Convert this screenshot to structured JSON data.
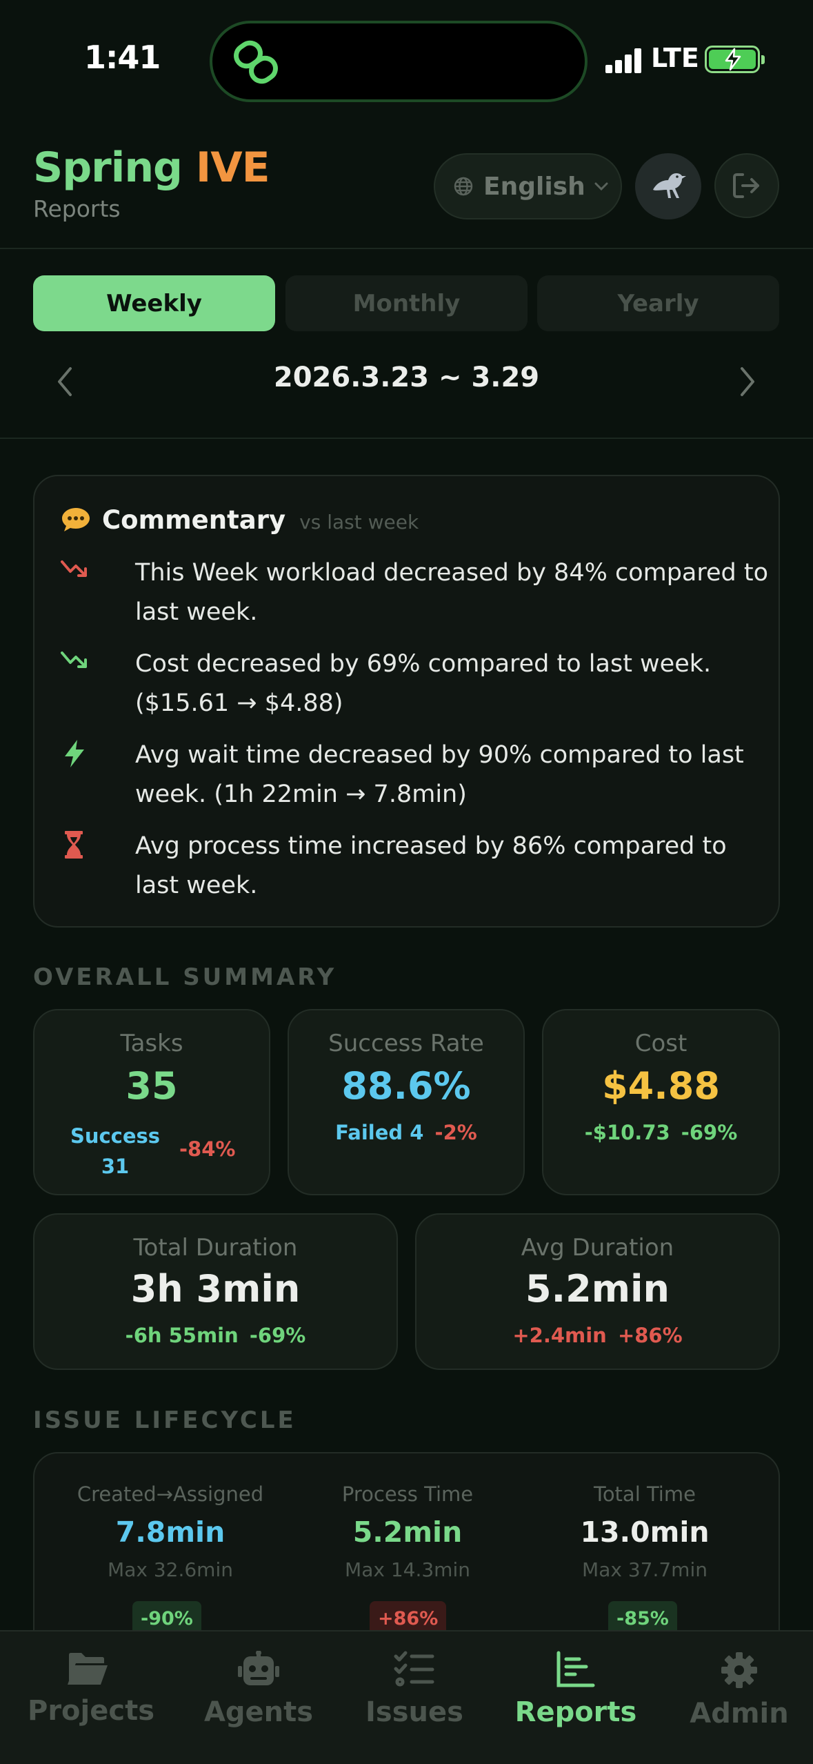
{
  "status_bar": {
    "time": "1:41",
    "network": "LTE",
    "signal_icon": "signal-bars-icon",
    "battery_icon": "battery-charging-icon"
  },
  "header": {
    "brand_primary": "Spring",
    "brand_secondary": "IVE",
    "subtitle": "Reports",
    "language": "English",
    "colors": {
      "brand_green": "#7ad98a",
      "brand_orange": "#f29540"
    }
  },
  "tabs": [
    {
      "label": "Weekly",
      "active": true
    },
    {
      "label": "Monthly",
      "active": false
    },
    {
      "label": "Yearly",
      "active": false
    }
  ],
  "date_range": "2026.3.23 ~ 3.29",
  "commentary": {
    "title": "Commentary",
    "subtitle": "vs last week",
    "items": [
      {
        "icon": "trend-down-red-icon",
        "text": "This Week workload decreased by 84% compared to last week."
      },
      {
        "icon": "trend-down-green-icon",
        "text": "Cost decreased by 69% compared to last week. ($15.61 → $4.88)"
      },
      {
        "icon": "lightning-icon",
        "text": "Avg wait time decreased by 90% compared to last week. (1h 22min → 7.8min)"
      },
      {
        "icon": "hourglass-icon",
        "text": "Avg process time increased by 86% compared to last week."
      }
    ]
  },
  "overall_summary": {
    "title": "OVERALL SUMMARY",
    "tasks": {
      "label": "Tasks",
      "value": "35",
      "success_label": "Success",
      "success_value": "31",
      "change": "-84%"
    },
    "success_rate": {
      "label": "Success Rate",
      "value": "88.6%",
      "failed": "Failed 4",
      "change": "-2%"
    },
    "cost": {
      "label": "Cost",
      "value": "$4.88",
      "delta": "-$10.73",
      "change": "-69%"
    },
    "total_duration": {
      "label": "Total Duration",
      "value": "3h 3min",
      "delta": "-6h 55min",
      "change": "-69%"
    },
    "avg_duration": {
      "label": "Avg Duration",
      "value": "5.2min",
      "delta": "+2.4min",
      "change": "+86%"
    }
  },
  "issue_lifecycle": {
    "title": "ISSUE LIFECYCLE",
    "columns": [
      {
        "label": "Created→Assigned",
        "value": "7.8min",
        "max": "Max 32.6min",
        "change": "-90%"
      },
      {
        "label": "Process Time",
        "value": "5.2min",
        "max": "Max 14.3min",
        "change": "+86%"
      },
      {
        "label": "Total Time",
        "value": "13.0min",
        "max": "Max 37.7min",
        "change": "-85%"
      }
    ]
  },
  "bottom_nav": [
    {
      "label": "Projects",
      "icon": "folder-icon",
      "active": false
    },
    {
      "label": "Agents",
      "icon": "robot-icon",
      "active": false
    },
    {
      "label": "Issues",
      "icon": "checklist-icon",
      "active": false
    },
    {
      "label": "Reports",
      "icon": "bar-chart-icon",
      "active": true
    },
    {
      "label": "Admin",
      "icon": "gear-icon",
      "active": false
    }
  ]
}
